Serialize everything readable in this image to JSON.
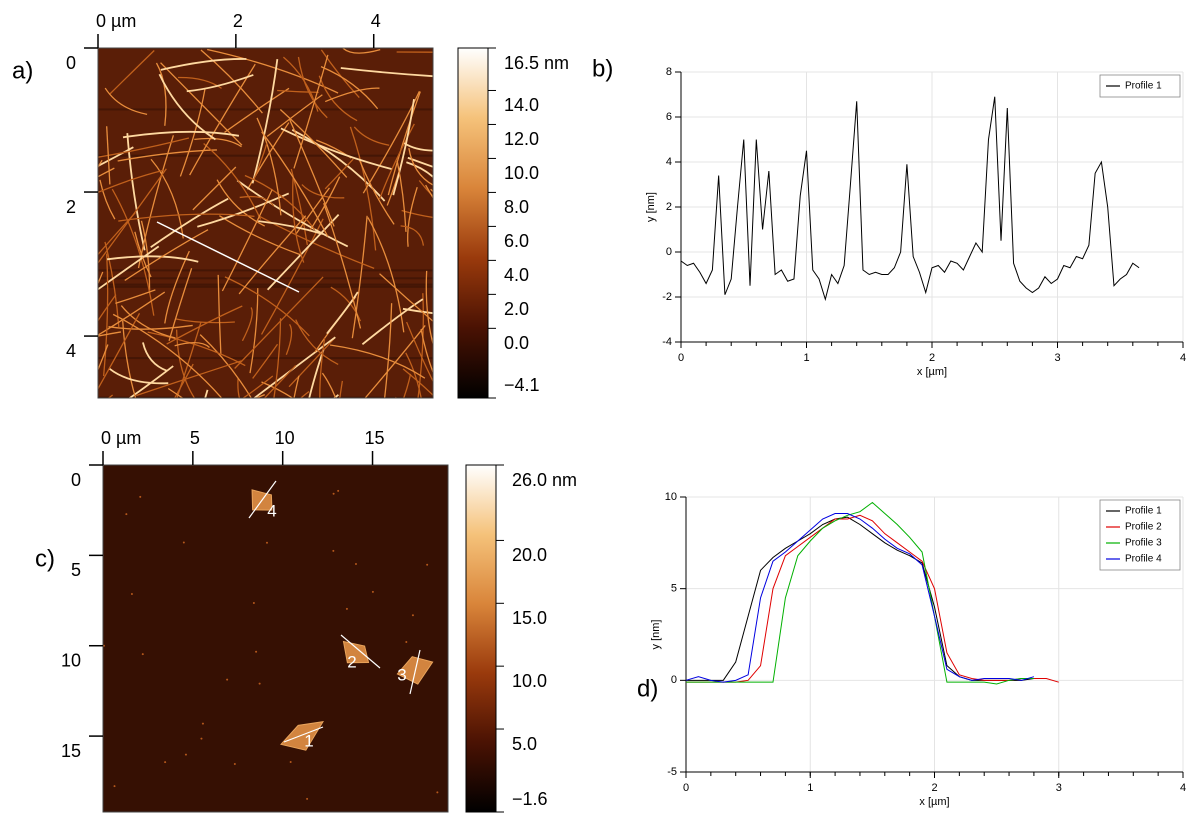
{
  "chart_data": [
    {
      "type": "afm-image",
      "label": "a)",
      "xlim": [
        0,
        4.86
      ],
      "ylim": [
        0,
        4.86
      ],
      "xticks": [
        {
          "value": 0,
          "label": "0 µm"
        },
        2,
        4
      ],
      "yticks": [
        0,
        2,
        4
      ],
      "colorbar": {
        "lim": [
          -4.1,
          16.5
        ],
        "ticks": [
          {
            "value": 16.5,
            "label": "16.5 nm"
          },
          {
            "value": 14,
            "label": "14.0"
          },
          {
            "value": 12,
            "label": "12.0"
          },
          {
            "value": 10,
            "label": "10.0"
          },
          {
            "value": 8,
            "label": "8.0"
          },
          {
            "value": 6,
            "label": "6.0"
          },
          {
            "value": 4,
            "label": "4.0"
          },
          {
            "value": 2,
            "label": "2.0"
          },
          {
            "value": 0,
            "label": "0.0"
          },
          {
            "value": -4.1,
            "label": "−4.1"
          }
        ],
        "colors": [
          "#000000",
          "#4a1203",
          "#9a3a0c",
          "#d9853a",
          "#f5c27a",
          "#ffffff"
        ]
      }
    },
    {
      "type": "line",
      "label": "b)",
      "xlabel": "x [µm]",
      "ylabel": "y [nm]",
      "grid": true,
      "legend": "upper right",
      "xlim": [
        0,
        4
      ],
      "ylim": [
        -4,
        8
      ],
      "xticks": [
        0,
        1,
        2,
        3,
        4
      ],
      "yticks": [
        -4,
        -2,
        0,
        2,
        4,
        6,
        8
      ],
      "x": [
        0,
        0.05,
        0.1,
        0.15,
        0.2,
        0.25,
        0.3,
        0.35,
        0.4,
        0.45,
        0.5,
        0.55,
        0.6,
        0.65,
        0.7,
        0.75,
        0.8,
        0.85,
        0.9,
        0.95,
        1.0,
        1.05,
        1.1,
        1.15,
        1.2,
        1.25,
        1.3,
        1.35,
        1.4,
        1.45,
        1.5,
        1.55,
        1.6,
        1.65,
        1.7,
        1.75,
        1.8,
        1.85,
        1.9,
        1.95,
        2.0,
        2.05,
        2.1,
        2.15,
        2.2,
        2.25,
        2.3,
        2.35,
        2.4,
        2.45,
        2.5,
        2.55,
        2.6,
        2.65,
        2.7,
        2.75,
        2.8,
        2.85,
        2.9,
        2.95,
        3.0,
        3.05,
        3.1,
        3.15,
        3.2,
        3.25,
        3.3,
        3.35,
        3.4,
        3.45,
        3.5,
        3.55,
        3.6,
        3.65
      ],
      "series": [
        {
          "name": "Profile 1",
          "color": "#000000",
          "values": [
            -0.4,
            -0.6,
            -0.5,
            -0.9,
            -1.4,
            -0.8,
            3.4,
            -1.9,
            -1.2,
            2.0,
            5.0,
            -1.5,
            5.0,
            1.0,
            3.6,
            -1.0,
            -0.8,
            -1.3,
            -1.2,
            2.5,
            4.5,
            -0.8,
            -1.2,
            -2.1,
            -1.0,
            -1.4,
            -0.6,
            3.0,
            6.7,
            -0.8,
            -1.0,
            -0.9,
            -1.0,
            -1.0,
            -0.7,
            0.0,
            3.9,
            -0.2,
            -0.9,
            -1.8,
            -0.7,
            -0.6,
            -0.9,
            -0.4,
            -0.5,
            -0.8,
            -0.2,
            0.4,
            0.0,
            5.0,
            6.9,
            0.5,
            6.4,
            -0.5,
            -1.3,
            -1.6,
            -1.8,
            -1.6,
            -1.1,
            -1.4,
            -1.2,
            -0.6,
            -0.7,
            -0.2,
            -0.3,
            0.3,
            3.5,
            4.0,
            2.0,
            -1.5,
            -1.2,
            -1.0,
            -0.5,
            -0.7
          ]
        }
      ]
    },
    {
      "type": "afm-image",
      "label": "c)",
      "xlim": [
        0,
        19.2
      ],
      "ylim": [
        0,
        19.2
      ],
      "xticks": [
        {
          "value": 0,
          "label": "0 µm"
        },
        5,
        10,
        15
      ],
      "yticks": [
        0,
        5,
        10,
        15
      ],
      "annotations": [
        "1",
        "2",
        "3",
        "4"
      ],
      "colorbar": {
        "lim": [
          -1.6,
          26
        ],
        "ticks": [
          {
            "value": 26,
            "label": "26.0 nm"
          },
          {
            "value": 20,
            "label": "20.0"
          },
          {
            "value": 15,
            "label": "15.0"
          },
          {
            "value": 10,
            "label": "10.0"
          },
          {
            "value": 5,
            "label": "5.0"
          },
          {
            "value": -1.6,
            "label": "−1.6"
          }
        ],
        "colors": [
          "#000000",
          "#4a1203",
          "#9a3a0c",
          "#d9853a",
          "#f5c27a",
          "#ffffff"
        ]
      }
    },
    {
      "type": "line",
      "label": "d)",
      "xlabel": "x [µm]",
      "ylabel": "y [nm]",
      "grid": true,
      "legend": "upper right",
      "xlim": [
        0,
        4
      ],
      "ylim": [
        -5,
        10
      ],
      "xticks": [
        0,
        1,
        2,
        3,
        4
      ],
      "yticks": [
        -5,
        0,
        5,
        10
      ],
      "x": [
        0,
        0.1,
        0.2,
        0.3,
        0.4,
        0.5,
        0.6,
        0.7,
        0.8,
        0.9,
        1.0,
        1.1,
        1.2,
        1.3,
        1.4,
        1.5,
        1.6,
        1.7,
        1.8,
        1.9,
        2.0,
        2.1,
        2.2,
        2.3,
        2.4,
        2.5,
        2.6,
        2.7,
        2.8,
        2.9,
        3.0
      ],
      "series": [
        {
          "name": "Profile 1",
          "color": "#000000",
          "values": [
            0,
            0,
            0,
            0,
            1,
            3.5,
            6,
            6.7,
            7.2,
            7.6,
            8.0,
            8.5,
            8.8,
            8.9,
            8.5,
            8.0,
            7.5,
            7.1,
            6.8,
            6.4,
            4.0,
            0.8,
            0.2,
            0,
            0,
            0,
            0,
            0,
            0.1,
            null,
            null
          ]
        },
        {
          "name": "Profile 2",
          "color": "#e00000",
          "values": [
            -0.1,
            -0.1,
            -0.1,
            -0.1,
            -0.1,
            0,
            0.8,
            5.0,
            6.8,
            7.3,
            7.8,
            8.3,
            8.8,
            8.8,
            9.0,
            8.7,
            8.0,
            7.5,
            7.0,
            6.5,
            5.0,
            1.5,
            0.3,
            0.1,
            0,
            0,
            0,
            0.1,
            0.1,
            0.1,
            -0.1
          ]
        },
        {
          "name": "Profile 3",
          "color": "#00b000",
          "values": [
            -0.1,
            -0.1,
            -0.1,
            -0.1,
            -0.1,
            -0.1,
            -0.1,
            -0.1,
            4.5,
            6.8,
            7.6,
            8.3,
            8.7,
            9.0,
            9.2,
            9.7,
            9.1,
            8.5,
            7.8,
            7.0,
            3.5,
            -0.1,
            -0.1,
            -0.1,
            -0.1,
            -0.2,
            0,
            0.1,
            0.1,
            null,
            null
          ]
        },
        {
          "name": "Profile 4",
          "color": "#0000e0",
          "values": [
            0,
            0.2,
            0,
            -0.1,
            0,
            0.3,
            4.5,
            6.5,
            7.0,
            7.6,
            8.2,
            8.8,
            9.1,
            9.1,
            8.8,
            8.3,
            7.7,
            7.2,
            6.9,
            6.3,
            3.5,
            0.6,
            0.2,
            0,
            0.1,
            0.1,
            0.1,
            0,
            0.2,
            null,
            null
          ]
        }
      ]
    }
  ]
}
